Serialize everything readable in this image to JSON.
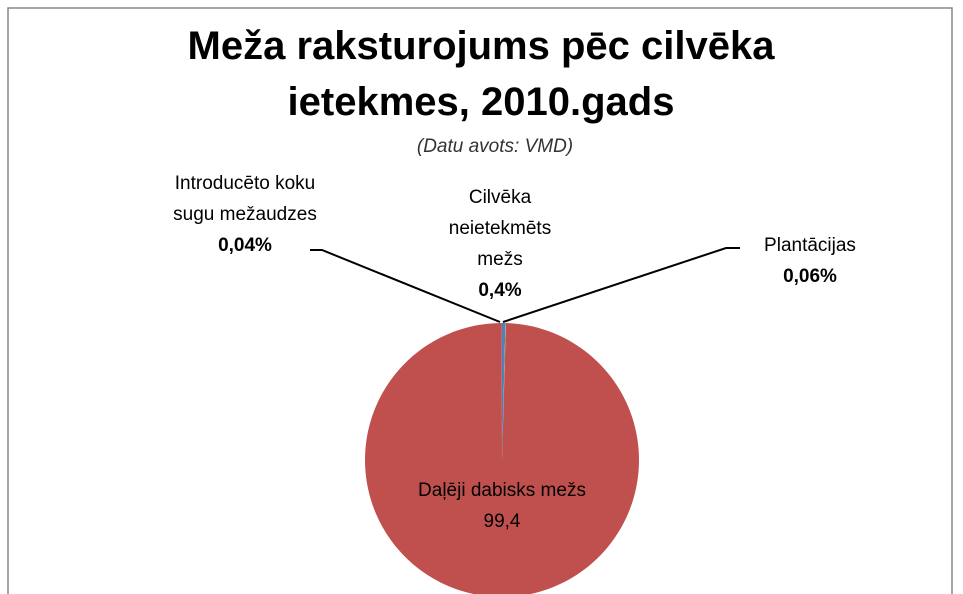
{
  "chart_data": {
    "type": "pie",
    "title": "Meža raksturojums pēc cilvēka ietekmes, 2010.gads",
    "subtitle": "(Datu avots: VMD)",
    "categories": [
      "Cilvēka neietekmēts mežs",
      "Plantācijas",
      "Daļēji dabisks mežs",
      "Introducēto koku sugu mežaudzes"
    ],
    "values": [
      0.4,
      0.06,
      99.4,
      0.04
    ],
    "value_labels": [
      "0,4%",
      "0,06%",
      "99,4",
      "0,04%"
    ],
    "colors": [
      "#4f81bd",
      "#9bbb59",
      "#c0504d",
      "#8064a2"
    ]
  }
}
